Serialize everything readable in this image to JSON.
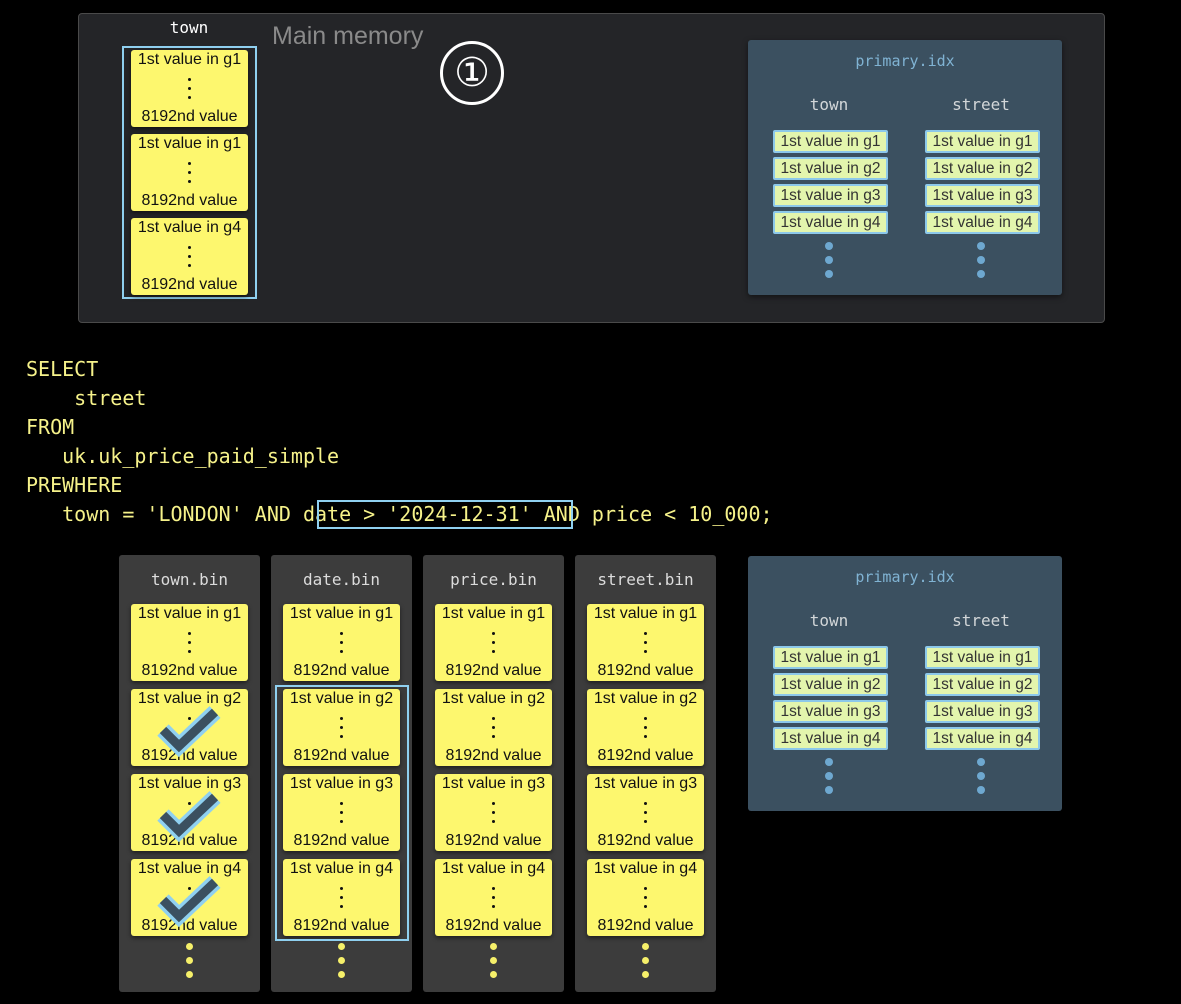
{
  "main_memory": {
    "label": "Main memory",
    "column": "town",
    "blocks": [
      [
        "1st value in g1",
        "8192nd value"
      ],
      [
        "1st value in g1",
        "8192nd value"
      ],
      [
        "1st value in g4",
        "8192nd value"
      ]
    ]
  },
  "step_marker": "①",
  "primary_index": {
    "title": "primary.idx",
    "columns": [
      {
        "name": "town",
        "entries": [
          "1st value in g1",
          "1st value in g2",
          "1st value in g3",
          "1st value in g4"
        ]
      },
      {
        "name": "street",
        "entries": [
          "1st value in g1",
          "1st value in g2",
          "1st value in g3",
          "1st value in g4"
        ]
      }
    ]
  },
  "query": {
    "lines": [
      "SELECT",
      "    street",
      "FROM",
      "   uk.uk_price_paid_simple",
      "PREWHERE",
      "   town = 'LONDON' AND date > '2024-12-31' AND price < 10_000;"
    ],
    "highlighted": "date > '2024-12-31'"
  },
  "columns": [
    {
      "name": "town.bin",
      "checked_groups": [
        "g2",
        "g3",
        "g4"
      ]
    },
    {
      "name": "date.bin",
      "highlighted_groups": [
        "g2",
        "g3",
        "g4"
      ]
    },
    {
      "name": "price.bin"
    },
    {
      "name": "street.bin"
    }
  ],
  "granule_blocks": [
    [
      "1st value in g1",
      "8192nd value"
    ],
    [
      "1st value in g2",
      "8192nd value"
    ],
    [
      "1st value in g3",
      "8192nd value"
    ],
    [
      "1st value in g4",
      "8192nd value"
    ]
  ],
  "colors": {
    "block": "#fdf76e",
    "highlight": "#8fd0f0",
    "index_bg": "#3b5060",
    "sql": "#f6f28a"
  }
}
